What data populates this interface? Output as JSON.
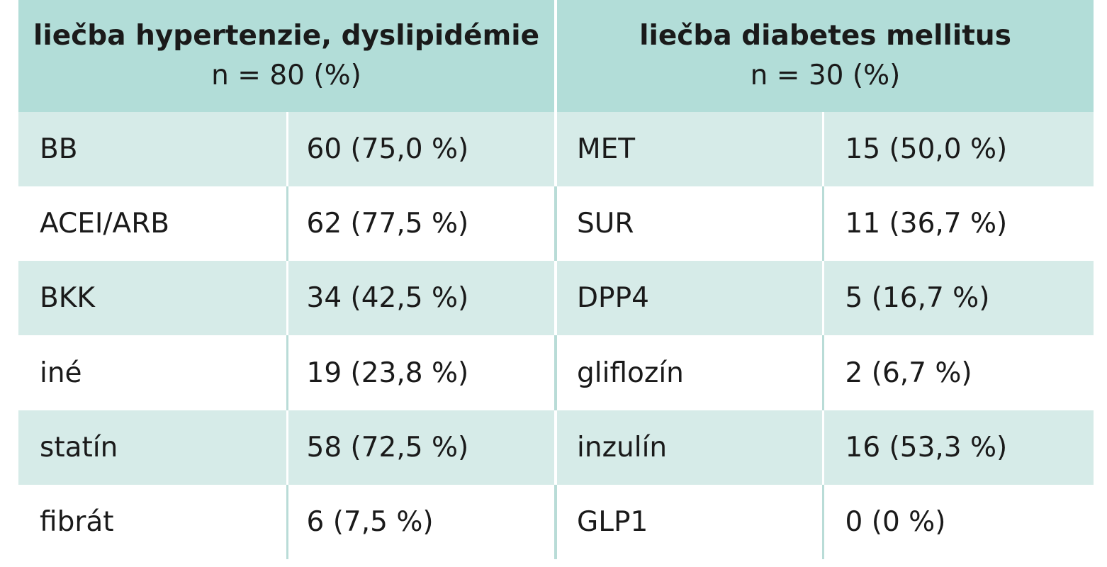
{
  "header": {
    "left_title": "liečba hypertenzie, dyslipidémie",
    "left_n": "n = 80 (%)",
    "right_title": "liečba diabetes mellitus",
    "right_n": "n = 30 (%)"
  },
  "rows": [
    {
      "left_label": "BB",
      "left_value": "60 (75,0 %)",
      "right_label": "MET",
      "right_value": "15 (50,0 %)"
    },
    {
      "left_label": "ACEI/ARB",
      "left_value": "62 (77,5 %)",
      "right_label": "SUR",
      "right_value": "11 (36,7 %)"
    },
    {
      "left_label": "BKK",
      "left_value": "34 (42,5 %)",
      "right_label": "DPP4",
      "right_value": "5 (16,7 %)"
    },
    {
      "left_label": "iné",
      "left_value": "19 (23,8 %)",
      "right_label": "gliflozín",
      "right_value": "2 (6,7 %)"
    },
    {
      "left_label": "statín",
      "left_value": "58 (72,5 %)",
      "right_label": "inzulín",
      "right_value": "16 (53,3 %)"
    },
    {
      "left_label": "fibrát",
      "left_value": "6 (7,5 %)",
      "right_label": "GLP1",
      "right_value": "0 (0 %)"
    }
  ],
  "colors": {
    "header_bg": "#b2ddd8",
    "row_alt_bg": "#d6ebe8",
    "row_bg": "#ffffff",
    "text": "#1a1a1a"
  }
}
